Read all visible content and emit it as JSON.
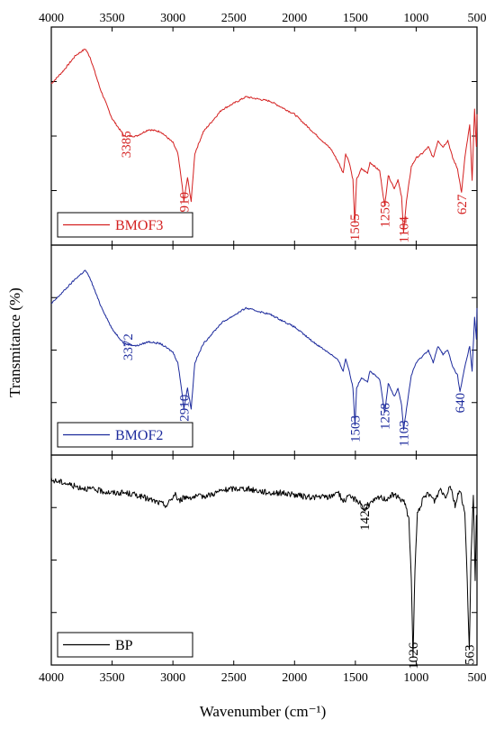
{
  "chart_data": {
    "type": "line",
    "xlabel": "Wavenumber (cm⁻¹)",
    "ylabel": "Transmitance (%)",
    "xlim": [
      4000,
      500
    ],
    "x_ticks": [
      "4000",
      "3500",
      "3000",
      "2500",
      "2000",
      "1500",
      "1000",
      "500"
    ],
    "grid": false,
    "panels": [
      {
        "legend": "BMOF3",
        "color": "#d42020",
        "legend_position": "bottom-left",
        "series": [
          [
            4000,
            0.74
          ],
          [
            3900,
            0.8
          ],
          [
            3800,
            0.87
          ],
          [
            3720,
            0.9
          ],
          [
            3680,
            0.86
          ],
          [
            3600,
            0.72
          ],
          [
            3500,
            0.58
          ],
          [
            3400,
            0.5
          ],
          [
            3300,
            0.5
          ],
          [
            3200,
            0.53
          ],
          [
            3100,
            0.52
          ],
          [
            3000,
            0.47
          ],
          [
            2960,
            0.42
          ],
          [
            2930,
            0.3
          ],
          [
            2910,
            0.2
          ],
          [
            2880,
            0.31
          ],
          [
            2850,
            0.2
          ],
          [
            2820,
            0.42
          ],
          [
            2750,
            0.52
          ],
          [
            2600,
            0.62
          ],
          [
            2400,
            0.68
          ],
          [
            2200,
            0.66
          ],
          [
            2000,
            0.6
          ],
          [
            1850,
            0.52
          ],
          [
            1700,
            0.44
          ],
          [
            1640,
            0.38
          ],
          [
            1600,
            0.33
          ],
          [
            1580,
            0.42
          ],
          [
            1550,
            0.38
          ],
          [
            1520,
            0.3
          ],
          [
            1505,
            0.1
          ],
          [
            1490,
            0.3
          ],
          [
            1450,
            0.35
          ],
          [
            1400,
            0.33
          ],
          [
            1380,
            0.38
          ],
          [
            1300,
            0.34
          ],
          [
            1259,
            0.18
          ],
          [
            1230,
            0.32
          ],
          [
            1180,
            0.26
          ],
          [
            1150,
            0.3
          ],
          [
            1120,
            0.22
          ],
          [
            1104,
            0.06
          ],
          [
            1080,
            0.2
          ],
          [
            1040,
            0.36
          ],
          [
            1000,
            0.4
          ],
          [
            950,
            0.42
          ],
          [
            900,
            0.45
          ],
          [
            860,
            0.4
          ],
          [
            820,
            0.48
          ],
          [
            780,
            0.45
          ],
          [
            740,
            0.48
          ],
          [
            700,
            0.4
          ],
          [
            660,
            0.35
          ],
          [
            627,
            0.24
          ],
          [
            600,
            0.4
          ],
          [
            560,
            0.55
          ],
          [
            540,
            0.3
          ],
          [
            520,
            0.62
          ],
          [
            505,
            0.45
          ],
          [
            500,
            0.6
          ]
        ],
        "annotations": [
          {
            "label": "3385",
            "x": 3385,
            "y": 0.4
          },
          {
            "label": "2910",
            "x": 2910,
            "y": 0.12
          },
          {
            "label": "1505",
            "x": 1505,
            "y": 0.02
          },
          {
            "label": "1259",
            "x": 1259,
            "y": 0.08
          },
          {
            "label": "1104",
            "x": 1104,
            "y": 0.01
          },
          {
            "label": "627",
            "x": 627,
            "y": 0.14
          }
        ]
      },
      {
        "legend": "BMOF2",
        "color": "#1c2a9c",
        "legend_position": "bottom-left",
        "series": [
          [
            4000,
            0.72
          ],
          [
            3900,
            0.78
          ],
          [
            3800,
            0.84
          ],
          [
            3720,
            0.88
          ],
          [
            3680,
            0.84
          ],
          [
            3600,
            0.72
          ],
          [
            3500,
            0.6
          ],
          [
            3400,
            0.53
          ],
          [
            3300,
            0.52
          ],
          [
            3200,
            0.54
          ],
          [
            3100,
            0.53
          ],
          [
            3000,
            0.49
          ],
          [
            2960,
            0.44
          ],
          [
            2930,
            0.32
          ],
          [
            2910,
            0.22
          ],
          [
            2880,
            0.32
          ],
          [
            2850,
            0.22
          ],
          [
            2820,
            0.44
          ],
          [
            2750,
            0.53
          ],
          [
            2600,
            0.63
          ],
          [
            2400,
            0.7
          ],
          [
            2200,
            0.67
          ],
          [
            2000,
            0.61
          ],
          [
            1850,
            0.54
          ],
          [
            1700,
            0.48
          ],
          [
            1640,
            0.45
          ],
          [
            1600,
            0.4
          ],
          [
            1580,
            0.46
          ],
          [
            1550,
            0.4
          ],
          [
            1520,
            0.32
          ],
          [
            1503,
            0.14
          ],
          [
            1490,
            0.32
          ],
          [
            1450,
            0.37
          ],
          [
            1400,
            0.35
          ],
          [
            1380,
            0.4
          ],
          [
            1300,
            0.36
          ],
          [
            1258,
            0.2
          ],
          [
            1230,
            0.34
          ],
          [
            1180,
            0.28
          ],
          [
            1150,
            0.32
          ],
          [
            1120,
            0.24
          ],
          [
            1103,
            0.12
          ],
          [
            1080,
            0.22
          ],
          [
            1040,
            0.38
          ],
          [
            1000,
            0.44
          ],
          [
            950,
            0.47
          ],
          [
            900,
            0.5
          ],
          [
            860,
            0.44
          ],
          [
            820,
            0.52
          ],
          [
            780,
            0.48
          ],
          [
            740,
            0.5
          ],
          [
            700,
            0.42
          ],
          [
            660,
            0.38
          ],
          [
            640,
            0.3
          ],
          [
            600,
            0.42
          ],
          [
            560,
            0.52
          ],
          [
            540,
            0.4
          ],
          [
            520,
            0.66
          ],
          [
            505,
            0.55
          ],
          [
            500,
            0.7
          ]
        ],
        "annotations": [
          {
            "label": "3372",
            "x": 3372,
            "y": 0.45
          },
          {
            "label": "2910",
            "x": 2910,
            "y": 0.16
          },
          {
            "label": "1503",
            "x": 1503,
            "y": 0.06
          },
          {
            "label": "1258",
            "x": 1258,
            "y": 0.12
          },
          {
            "label": "1103",
            "x": 1103,
            "y": 0.04
          },
          {
            "label": "640",
            "x": 640,
            "y": 0.2
          }
        ]
      },
      {
        "legend": "BP",
        "color": "#000000",
        "legend_position": "bottom-left",
        "series": [
          [
            4000,
            0.88
          ],
          [
            3900,
            0.87
          ],
          [
            3800,
            0.85
          ],
          [
            3700,
            0.84
          ],
          [
            3600,
            0.83
          ],
          [
            3500,
            0.82
          ],
          [
            3400,
            0.82
          ],
          [
            3300,
            0.81
          ],
          [
            3200,
            0.79
          ],
          [
            3100,
            0.77
          ],
          [
            3050,
            0.76
          ],
          [
            3000,
            0.8
          ],
          [
            2980,
            0.82
          ],
          [
            2960,
            0.78
          ],
          [
            2900,
            0.8
          ],
          [
            2800,
            0.8
          ],
          [
            2700,
            0.81
          ],
          [
            2600,
            0.83
          ],
          [
            2500,
            0.84
          ],
          [
            2400,
            0.84
          ],
          [
            2300,
            0.83
          ],
          [
            2200,
            0.82
          ],
          [
            2100,
            0.82
          ],
          [
            2000,
            0.81
          ],
          [
            1900,
            0.8
          ],
          [
            1800,
            0.8
          ],
          [
            1700,
            0.8
          ],
          [
            1650,
            0.83
          ],
          [
            1600,
            0.78
          ],
          [
            1550,
            0.8
          ],
          [
            1500,
            0.79
          ],
          [
            1450,
            0.77
          ],
          [
            1426,
            0.73
          ],
          [
            1400,
            0.76
          ],
          [
            1350,
            0.78
          ],
          [
            1300,
            0.8
          ],
          [
            1250,
            0.79
          ],
          [
            1200,
            0.81
          ],
          [
            1150,
            0.8
          ],
          [
            1100,
            0.78
          ],
          [
            1060,
            0.7
          ],
          [
            1040,
            0.4
          ],
          [
            1026,
            0.05
          ],
          [
            1010,
            0.45
          ],
          [
            990,
            0.72
          ],
          [
            950,
            0.78
          ],
          [
            900,
            0.82
          ],
          [
            850,
            0.78
          ],
          [
            800,
            0.84
          ],
          [
            760,
            0.8
          ],
          [
            720,
            0.86
          ],
          [
            680,
            0.76
          ],
          [
            640,
            0.84
          ],
          [
            600,
            0.72
          ],
          [
            580,
            0.4
          ],
          [
            563,
            0.06
          ],
          [
            550,
            0.5
          ],
          [
            530,
            0.8
          ],
          [
            515,
            0.4
          ],
          [
            505,
            0.72
          ],
          [
            500,
            0.66
          ]
        ],
        "annotations": [
          {
            "label": "1426",
            "x": 1426,
            "y": 0.64
          },
          {
            "label": "1026",
            "x": 1026,
            "y": -0.02
          },
          {
            "label": "563",
            "x": 563,
            "y": 0.0
          }
        ]
      }
    ]
  }
}
